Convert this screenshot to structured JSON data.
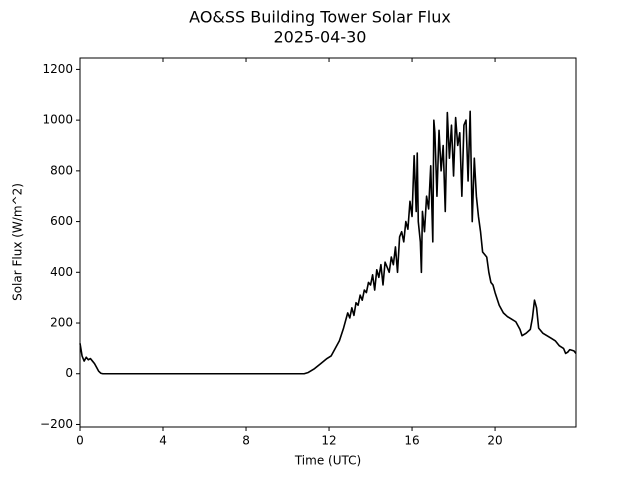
{
  "chart_data": {
    "type": "line",
    "title": "AO&SS Building Tower Solar Flux",
    "subtitle": "2025-04-30",
    "xlabel": "Time (UTC)",
    "ylabel": "Solar Flux (W/m^2)",
    "color": "#000000",
    "xlim": [
      0,
      23.9
    ],
    "ylim": [
      -210,
      1245
    ],
    "xticks": [
      0,
      4,
      8,
      12,
      16,
      20
    ],
    "yticks": [
      {
        "value": -200,
        "label": "−200"
      },
      0,
      200,
      400,
      600,
      800,
      1000,
      1200
    ],
    "x": [
      0,
      0.1,
      0.2,
      0.3,
      0.4,
      0.5,
      0.6,
      0.7,
      0.8,
      0.9,
      1.0,
      1.1,
      10.8,
      11,
      11.3,
      11.6,
      11.9,
      12.1,
      12.3,
      12.5,
      12.7,
      12.9,
      13.0,
      13.1,
      13.2,
      13.3,
      13.4,
      13.5,
      13.6,
      13.7,
      13.8,
      13.9,
      14.0,
      14.1,
      14.2,
      14.3,
      14.4,
      14.5,
      14.6,
      14.7,
      14.8,
      14.9,
      15.0,
      15.1,
      15.2,
      15.3,
      15.4,
      15.5,
      15.6,
      15.7,
      15.8,
      15.9,
      16.0,
      16.1,
      16.2,
      16.25,
      16.3,
      16.4,
      16.45,
      16.5,
      16.6,
      16.7,
      16.8,
      16.9,
      17.0,
      17.05,
      17.1,
      17.2,
      17.3,
      17.4,
      17.5,
      17.6,
      17.7,
      17.8,
      17.9,
      18.0,
      18.1,
      18.2,
      18.3,
      18.4,
      18.5,
      18.6,
      18.7,
      18.8,
      18.9,
      19.0,
      19.1,
      19.2,
      19.3,
      19.4,
      19.5,
      19.6,
      19.7,
      19.8,
      19.9,
      20.0,
      20.2,
      20.4,
      20.6,
      20.8,
      21.0,
      21.2,
      21.3,
      21.5,
      21.7,
      21.8,
      21.9,
      22.0,
      22.1,
      22.3,
      22.5,
      22.7,
      22.9,
      23.1,
      23.3,
      23.4,
      23.5,
      23.6,
      23.8,
      23.9
    ],
    "values": [
      120,
      70,
      50,
      65,
      55,
      60,
      50,
      40,
      25,
      10,
      2,
      0,
      0,
      5,
      20,
      40,
      60,
      70,
      100,
      130,
      180,
      240,
      220,
      260,
      230,
      280,
      270,
      310,
      290,
      330,
      320,
      360,
      350,
      390,
      330,
      410,
      380,
      430,
      350,
      440,
      420,
      400,
      460,
      430,
      500,
      400,
      540,
      560,
      520,
      600,
      570,
      680,
      620,
      860,
      640,
      870,
      600,
      520,
      400,
      640,
      560,
      700,
      650,
      820,
      520,
      1000,
      950,
      700,
      960,
      800,
      900,
      640,
      1030,
      850,
      980,
      780,
      1010,
      900,
      950,
      700,
      980,
      1000,
      760,
      1035,
      600,
      850,
      700,
      620,
      560,
      480,
      470,
      460,
      400,
      360,
      350,
      320,
      270,
      240,
      225,
      215,
      205,
      175,
      150,
      160,
      175,
      220,
      290,
      260,
      180,
      160,
      150,
      140,
      130,
      110,
      100,
      80,
      85,
      95,
      90,
      80
    ]
  }
}
